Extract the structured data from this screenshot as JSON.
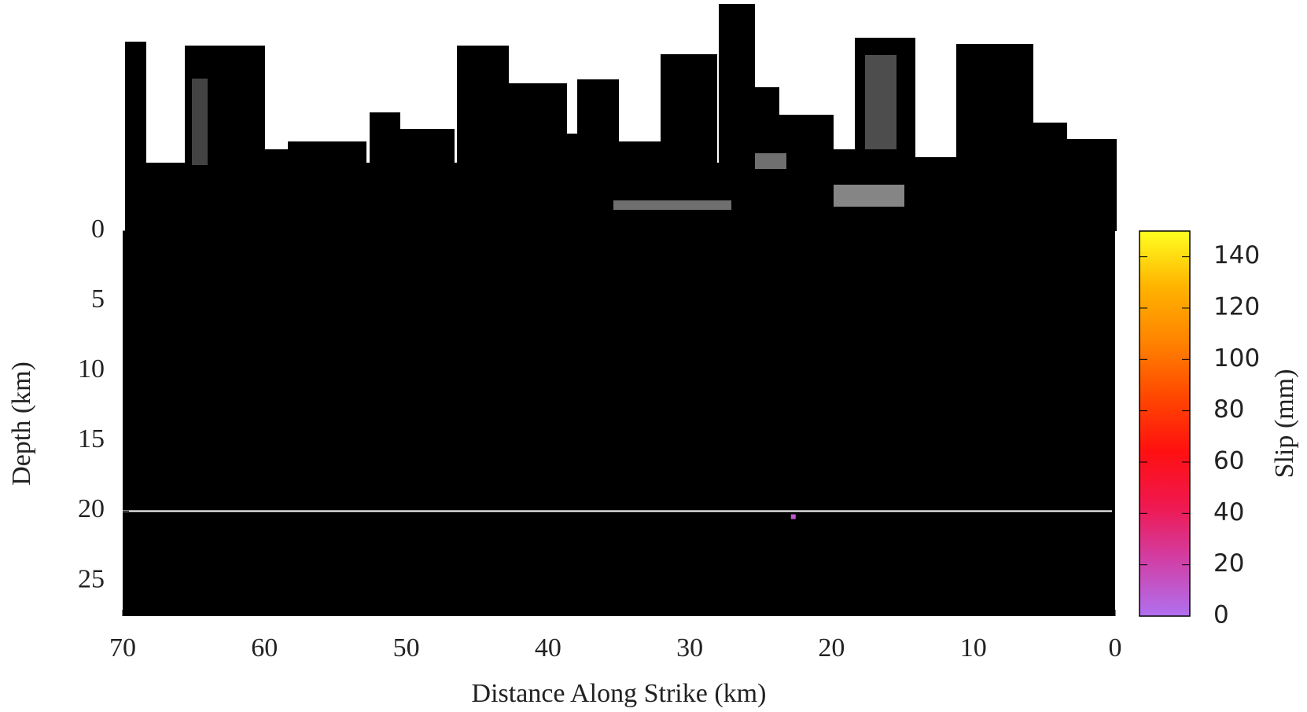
{
  "chart_data": {
    "type": "heatmap",
    "x_label": "Distance Along Strike (km)",
    "y_label": "Depth (km)",
    "colorbar_label": "Slip (mm)",
    "x": [
      22.7
    ],
    "y": [
      20.4
    ],
    "values": [
      10
    ],
    "xlim": [
      70,
      0
    ],
    "xticks": [
      70,
      60,
      50,
      40,
      30,
      20,
      10,
      0
    ],
    "ylim": [
      0,
      27.5
    ],
    "yticks": [
      0,
      5,
      10,
      15,
      20,
      25
    ],
    "hlines": [
      20
    ],
    "clim": [
      0,
      150
    ],
    "cticks": [
      0,
      20,
      40,
      60,
      80,
      100,
      120,
      140
    ],
    "colormap": [
      "#b070f0",
      "#d040a8",
      "#f01850",
      "#ff1010",
      "#ff4800",
      "#ff8400",
      "#ffb400",
      "#ffff20"
    ],
    "background": "#000000"
  }
}
